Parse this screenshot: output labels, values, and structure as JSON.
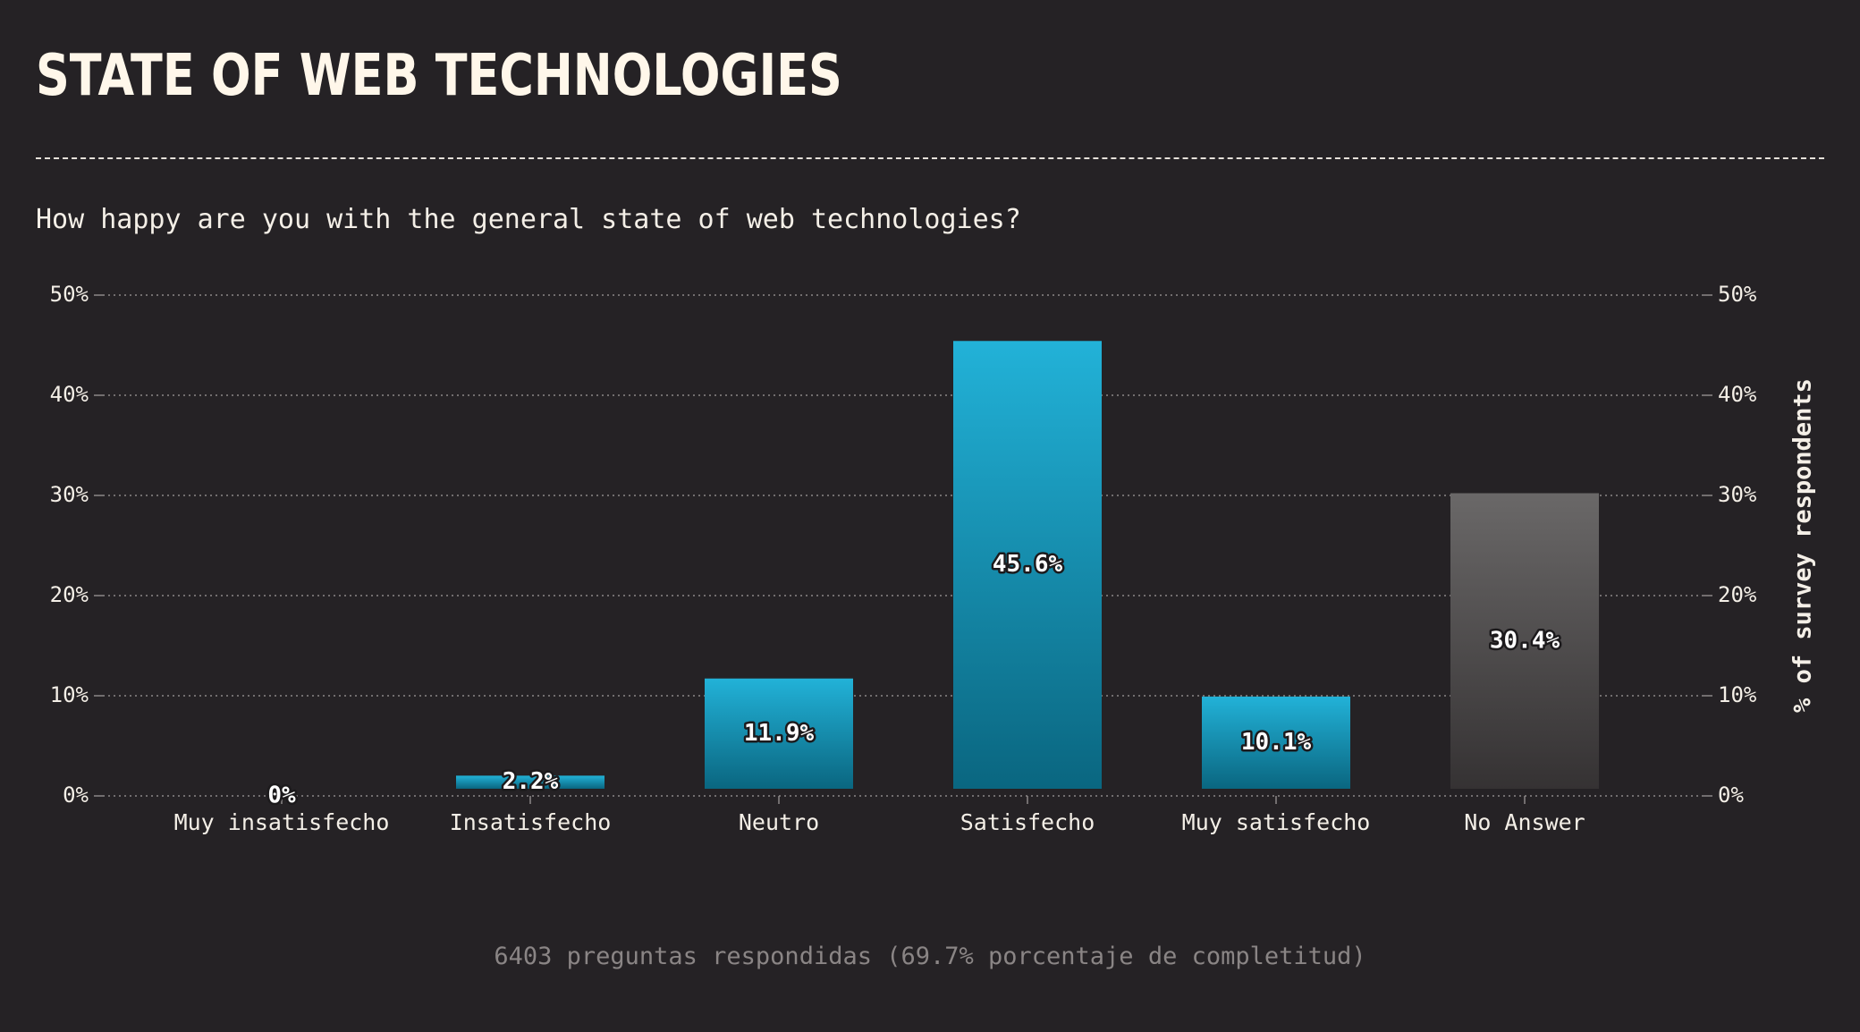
{
  "header": {
    "title": "STATE OF WEB TECHNOLOGIES",
    "question": "How happy are you with the general state of web technologies?"
  },
  "footer": {
    "text": "6403 preguntas respondidas (69.7% porcentaje de completitud)"
  },
  "chart_data": {
    "type": "bar",
    "categories": [
      "Muy insatisfecho",
      "Insatisfecho",
      "Neutro",
      "Satisfecho",
      "Muy satisfecho",
      "No Answer"
    ],
    "values": [
      0,
      2.2,
      11.9,
      45.6,
      10.1,
      30.4
    ],
    "value_labels": [
      "0%",
      "2.2%",
      "11.9%",
      "45.6%",
      "10.1%",
      "30.4%"
    ],
    "ylim": [
      0,
      50
    ],
    "yticks": [
      "0%",
      "10%",
      "20%",
      "30%",
      "40%",
      "50%"
    ],
    "ylabel": "% of survey respondents",
    "grid": true,
    "colors": {
      "bar_top": "#22b2d8",
      "bar_bottom": "#0a6680",
      "no_answer_top": "#6a6868",
      "no_answer_bottom": "#353233",
      "grid": "#8c8888",
      "text": "#f4efe7",
      "background": "#252225"
    }
  }
}
